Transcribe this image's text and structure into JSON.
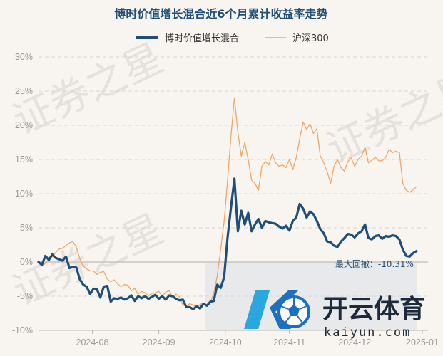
{
  "chart_data": {
    "type": "line",
    "title": "博时价值增长混合近6个月累计收益率走势",
    "series": [
      {
        "name": "博时价值增长混合",
        "color": "#1f4e79",
        "values": [
          [
            0,
            0
          ],
          [
            3,
            -0.4
          ],
          [
            6,
            0.9
          ],
          [
            9,
            0.3
          ],
          [
            12,
            1.1
          ],
          [
            15,
            0.6
          ],
          [
            18,
            0.4
          ],
          [
            21,
            0.2
          ],
          [
            24,
            0.8
          ],
          [
            27,
            -0.9
          ],
          [
            30,
            -0.7
          ],
          [
            33,
            -0.8
          ],
          [
            36,
            -2.5
          ],
          [
            39,
            -3.3
          ],
          [
            42,
            -3.6
          ],
          [
            45,
            -4.7
          ],
          [
            48,
            -3.9
          ],
          [
            51,
            -4.0
          ],
          [
            54,
            -5.2
          ],
          [
            57,
            -3.6
          ],
          [
            60,
            -3.5
          ],
          [
            63,
            -5.8
          ],
          [
            66,
            -5.3
          ],
          [
            69,
            -5.4
          ],
          [
            72,
            -5.2
          ],
          [
            75,
            -5.5
          ],
          [
            78,
            -5.3
          ],
          [
            81,
            -4.9
          ],
          [
            84,
            -5.7
          ],
          [
            87,
            -5.0
          ],
          [
            90,
            -5.3
          ],
          [
            93,
            -5.0
          ],
          [
            96,
            -5.4
          ],
          [
            99,
            -5.1
          ],
          [
            102,
            -4.8
          ],
          [
            105,
            -5.4
          ],
          [
            108,
            -5.0
          ],
          [
            111,
            -5.5
          ],
          [
            114,
            -4.9
          ],
          [
            117,
            -5.0
          ],
          [
            120,
            -5.4
          ],
          [
            123,
            -5.6
          ],
          [
            126,
            -5.5
          ],
          [
            129,
            -6.6
          ],
          [
            132,
            -6.6
          ],
          [
            135,
            -6.9
          ],
          [
            138,
            -6.5
          ],
          [
            141,
            -6.8
          ],
          [
            144,
            -6.1
          ],
          [
            147,
            -6.4
          ],
          [
            150,
            -5.8
          ],
          [
            153,
            -5.7
          ],
          [
            156,
            -3.3
          ],
          [
            159,
            -3.8
          ],
          [
            162,
            -2.2
          ],
          [
            165,
            3.6
          ],
          [
            168,
            8.0
          ],
          [
            171,
            12.2
          ],
          [
            174,
            4.5
          ],
          [
            177,
            7.5
          ],
          [
            180,
            5.5
          ],
          [
            183,
            7.2
          ],
          [
            186,
            4.5
          ],
          [
            189,
            5.5
          ],
          [
            192,
            6.3
          ],
          [
            195,
            5.0
          ],
          [
            198,
            6.0
          ],
          [
            201,
            5.8
          ],
          [
            204,
            5.7
          ],
          [
            207,
            5.6
          ],
          [
            210,
            5.2
          ],
          [
            213,
            4.9
          ],
          [
            216,
            5.3
          ],
          [
            219,
            4.6
          ],
          [
            222,
            6.0
          ],
          [
            225,
            6.5
          ],
          [
            228,
            8.5
          ],
          [
            231,
            7.8
          ],
          [
            234,
            6.5
          ],
          [
            237,
            7.4
          ],
          [
            240,
            7.0
          ],
          [
            243,
            6.0
          ],
          [
            246,
            4.8
          ],
          [
            249,
            4.2
          ],
          [
            252,
            3.0
          ],
          [
            255,
            2.9
          ],
          [
            258,
            2.4
          ],
          [
            261,
            2.2
          ],
          [
            264,
            3.0
          ],
          [
            267,
            3.5
          ],
          [
            270,
            4.1
          ],
          [
            273,
            4.0
          ],
          [
            276,
            3.6
          ],
          [
            279,
            4.2
          ],
          [
            282,
            4.5
          ],
          [
            285,
            5.5
          ],
          [
            288,
            3.5
          ],
          [
            291,
            3.3
          ],
          [
            294,
            3.8
          ],
          [
            297,
            3.9
          ],
          [
            300,
            3.4
          ],
          [
            303,
            3.8
          ],
          [
            306,
            3.7
          ],
          [
            309,
            3.9
          ],
          [
            312,
            3.8
          ],
          [
            315,
            3.3
          ],
          [
            318,
            1.8
          ],
          [
            321,
            0.9
          ],
          [
            324,
            0.8
          ],
          [
            327,
            1.3
          ],
          [
            330,
            1.6
          ]
        ]
      },
      {
        "name": "沪深300",
        "color": "#f0a565",
        "values": [
          [
            0,
            -0.2
          ],
          [
            3,
            -0.6
          ],
          [
            6,
            -0.2
          ],
          [
            9,
            0.3
          ],
          [
            12,
            0.8
          ],
          [
            15,
            1.4
          ],
          [
            18,
            1.9
          ],
          [
            21,
            2.0
          ],
          [
            24,
            2.4
          ],
          [
            27,
            2.8
          ],
          [
            30,
            3.0
          ],
          [
            33,
            2.2
          ],
          [
            36,
            0.5
          ],
          [
            39,
            -0.6
          ],
          [
            42,
            -1.0
          ],
          [
            45,
            -1.3
          ],
          [
            48,
            -1.3
          ],
          [
            51,
            -1.8
          ],
          [
            54,
            -1.5
          ],
          [
            57,
            -1.4
          ],
          [
            60,
            -2.5
          ],
          [
            63,
            -2.9
          ],
          [
            66,
            -2.6
          ],
          [
            69,
            -3.2
          ],
          [
            72,
            -3.6
          ],
          [
            75,
            -3.3
          ],
          [
            78,
            -3.4
          ],
          [
            81,
            -4.2
          ],
          [
            84,
            -3.9
          ],
          [
            87,
            -4.7
          ],
          [
            90,
            -4.3
          ],
          [
            93,
            -4.5
          ],
          [
            96,
            -4.9
          ],
          [
            99,
            -4.6
          ],
          [
            102,
            -4.5
          ],
          [
            105,
            -4.3
          ],
          [
            108,
            -5.0
          ],
          [
            111,
            -4.4
          ],
          [
            114,
            -4.2
          ],
          [
            117,
            -5.1
          ],
          [
            120,
            -4.7
          ],
          [
            123,
            -5.1
          ],
          [
            126,
            -6.3
          ],
          [
            129,
            -6.4
          ],
          [
            132,
            -6.1
          ],
          [
            135,
            -6.3
          ],
          [
            138,
            -6.7
          ],
          [
            141,
            -6.2
          ],
          [
            144,
            -6.0
          ],
          [
            147,
            -6.3
          ],
          [
            150,
            -6.0
          ],
          [
            153,
            -4.5
          ],
          [
            156,
            -2.0
          ],
          [
            159,
            1.8
          ],
          [
            162,
            6.0
          ],
          [
            165,
            12.0
          ],
          [
            168,
            18.5
          ],
          [
            171,
            24.0
          ],
          [
            174,
            19.0
          ],
          [
            177,
            15.5
          ],
          [
            180,
            17.5
          ],
          [
            183,
            15.0
          ],
          [
            186,
            12.0
          ],
          [
            189,
            11.5
          ],
          [
            192,
            10.5
          ],
          [
            195,
            14.0
          ],
          [
            198,
            14.7
          ],
          [
            201,
            14.2
          ],
          [
            204,
            15.8
          ],
          [
            207,
            14.5
          ],
          [
            210,
            14.0
          ],
          [
            213,
            14.2
          ],
          [
            216,
            13.8
          ],
          [
            219,
            15.0
          ],
          [
            222,
            13.5
          ],
          [
            225,
            15.3
          ],
          [
            228,
            18.0
          ],
          [
            231,
            20.5
          ],
          [
            234,
            19.4
          ],
          [
            237,
            20.2
          ],
          [
            240,
            18.8
          ],
          [
            243,
            19.5
          ],
          [
            246,
            15.5
          ],
          [
            249,
            14.5
          ],
          [
            252,
            13.2
          ],
          [
            255,
            11.5
          ],
          [
            258,
            14.0
          ],
          [
            261,
            15.0
          ],
          [
            264,
            13.8
          ],
          [
            267,
            13.3
          ],
          [
            270,
            14.7
          ],
          [
            273,
            15.2
          ],
          [
            276,
            14.0
          ],
          [
            279,
            15.0
          ],
          [
            282,
            15.5
          ],
          [
            285,
            16.8
          ],
          [
            288,
            14.5
          ],
          [
            291,
            14.9
          ],
          [
            294,
            15.3
          ],
          [
            297,
            14.8
          ],
          [
            300,
            14.8
          ],
          [
            303,
            15.3
          ],
          [
            306,
            16.5
          ],
          [
            309,
            16.0
          ],
          [
            312,
            16.2
          ],
          [
            315,
            16.0
          ],
          [
            318,
            11.5
          ],
          [
            321,
            10.5
          ],
          [
            324,
            10.2
          ],
          [
            327,
            10.6
          ],
          [
            330,
            11.0
          ]
        ]
      }
    ],
    "x_ticks": [
      {
        "label": "2024-08",
        "x": 47
      },
      {
        "label": "2024-09",
        "x": 105
      },
      {
        "label": "2024-10",
        "x": 163
      },
      {
        "label": "2024-11",
        "x": 219
      },
      {
        "label": "2024-12",
        "x": 276
      },
      {
        "label": "2025-01",
        "x": 335
      }
    ],
    "xlim": [
      0,
      340
    ],
    "ylim": [
      -10,
      30
    ],
    "y_ticks": [
      {
        "label": "30%",
        "value": 30
      },
      {
        "label": "25%",
        "value": 25
      },
      {
        "label": "20%",
        "value": 20
      },
      {
        "label": "15%",
        "value": 15
      },
      {
        "label": "10%",
        "value": 10
      },
      {
        "label": "5%",
        "value": 5
      },
      {
        "label": "0%",
        "value": 0
      },
      {
        "label": "-5%",
        "value": -5
      },
      {
        "label": "-10%",
        "value": -10
      }
    ],
    "drawdown": {
      "label": "最大回撤：-10.31%",
      "x_from": 145,
      "x_to": 330,
      "y_from": 0,
      "y_to": -10
    },
    "grid": true,
    "legend_position": "top-center"
  },
  "watermark": {
    "text": "证券之星"
  },
  "logo": {
    "name": "开云体育",
    "url": "kaiyun.com"
  }
}
